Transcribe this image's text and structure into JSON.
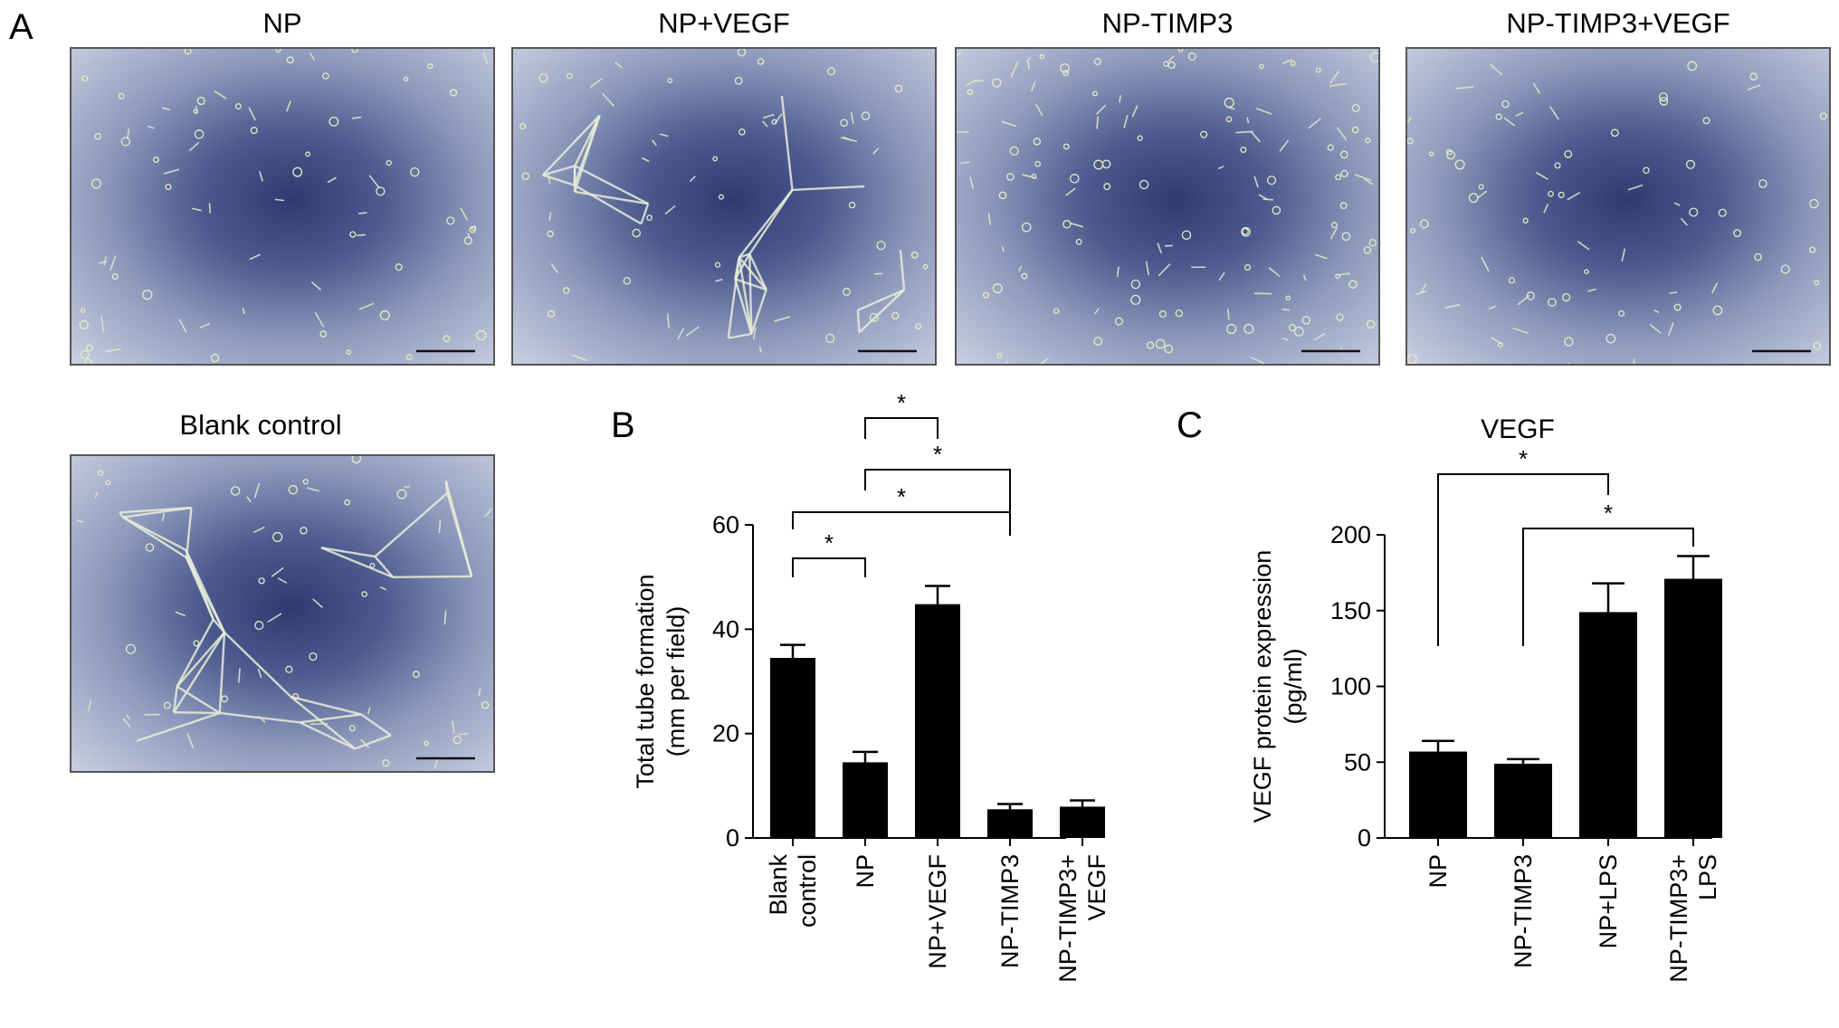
{
  "panel_letters": {
    "a": "A",
    "b": "B",
    "c": "C"
  },
  "micrographs": [
    {
      "title": "NP",
      "density": "sparse"
    },
    {
      "title": "NP+VEGF",
      "density": "network"
    },
    {
      "title": "NP-TIMP3",
      "density": "scattered"
    },
    {
      "title": "NP-TIMP3+VEGF",
      "density": "sparse"
    },
    {
      "title": "Blank control",
      "density": "network"
    }
  ],
  "chart_data": [
    {
      "type": "bar",
      "panel": "B",
      "title": "",
      "xlabel": "",
      "ylabel": "Total tube formation",
      "ylabel2": "(mm per field)",
      "ylim": [
        0,
        60
      ],
      "yticks": [
        0,
        20,
        40,
        60
      ],
      "categories": [
        [
          "Blank",
          "control"
        ],
        [
          "NP"
        ],
        [
          "NP+VEGF"
        ],
        [
          "NP-TIMP3"
        ],
        [
          "NP-TIMP3+",
          "VEGF"
        ]
      ],
      "values": [
        34.5,
        14.5,
        44.8,
        5.5,
        6.0
      ],
      "errors": [
        2.5,
        2.0,
        3.5,
        1.0,
        1.2
      ],
      "significance": [
        {
          "from": 0,
          "to": 1,
          "label": "*"
        },
        {
          "from": 0,
          "to": 3,
          "label": "*"
        },
        {
          "from": 1,
          "to": 3,
          "label": "*"
        },
        {
          "from": 1,
          "to": 2,
          "label": "*"
        }
      ]
    },
    {
      "type": "bar",
      "panel": "C",
      "title": "VEGF",
      "xlabel": "",
      "ylabel": "VEGF protein expression",
      "ylabel2": "(pg/ml)",
      "ylim": [
        0,
        200
      ],
      "yticks": [
        0,
        50,
        100,
        150,
        200
      ],
      "categories": [
        [
          "NP"
        ],
        [
          "NP-TIMP3"
        ],
        [
          "NP+LPS"
        ],
        [
          "NP-TIMP3+",
          "LPS"
        ]
      ],
      "values": [
        57,
        49,
        149,
        171
      ],
      "errors": [
        7,
        3,
        19,
        15
      ],
      "significance": [
        {
          "from": 0,
          "to": 2,
          "label": "*"
        },
        {
          "from": 1,
          "to": 3,
          "label": "*"
        }
      ]
    }
  ],
  "colors": {
    "bar": "#000000",
    "axis": "#000000"
  }
}
